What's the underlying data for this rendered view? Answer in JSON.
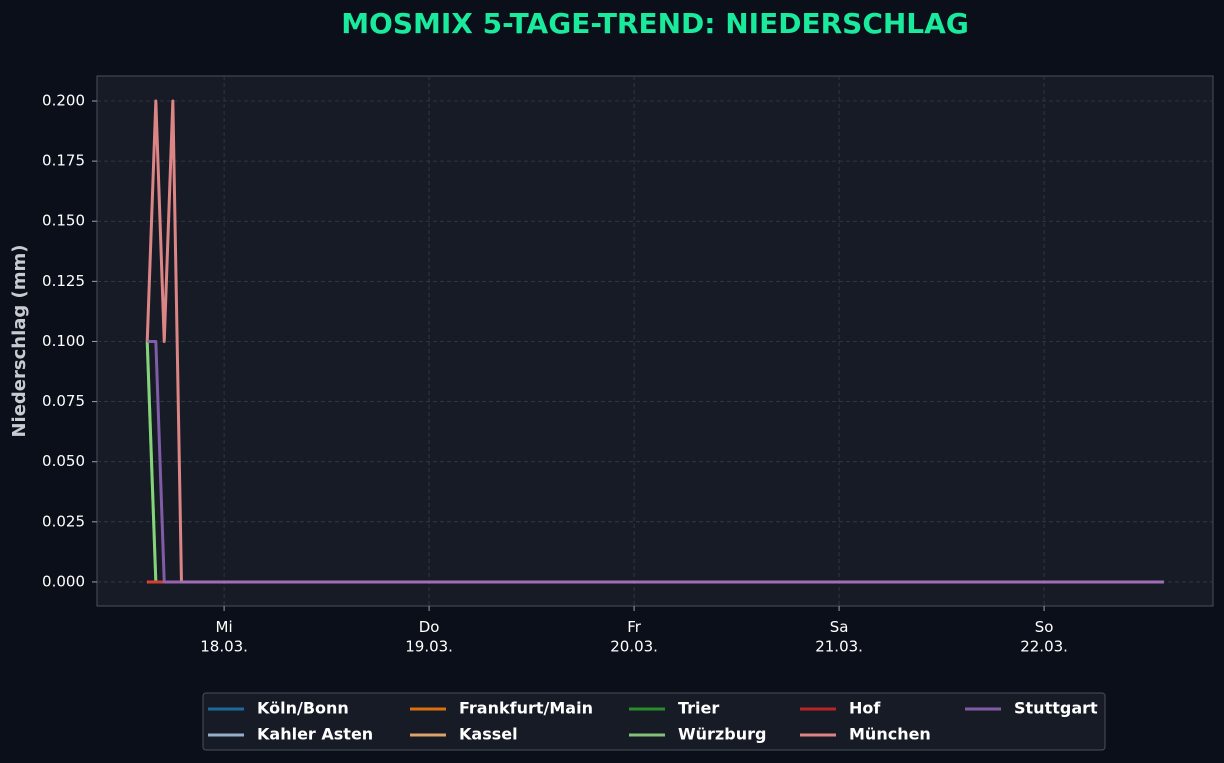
{
  "chart_data": {
    "type": "line",
    "title": "MOSMIX 5-TAGE-TREND: NIEDERSCHLAG",
    "y_label": "Niederschlag (mm)",
    "x": [
      17.625,
      17.667,
      17.708,
      17.75,
      17.792,
      22.583
    ],
    "xlim": [
      17.38,
      22.824
    ],
    "xticks": [
      {
        "value": 18,
        "label": "Mi\n18.03."
      },
      {
        "value": 19,
        "label": "Do\n19.03."
      },
      {
        "value": 20,
        "label": "Fr\n20.03."
      },
      {
        "value": 21,
        "label": "Sa\n21.03."
      },
      {
        "value": 22,
        "label": "So\n22.03."
      }
    ],
    "ylim": [
      -0.01,
      0.2104
    ],
    "yticks": [
      {
        "value": 0,
        "label": "0.000"
      },
      {
        "value": 0.025,
        "label": "0.025"
      },
      {
        "value": 0.05,
        "label": "0.050"
      },
      {
        "value": 0.075,
        "label": "0.075"
      },
      {
        "value": 0.1,
        "label": "0.100"
      },
      {
        "value": 0.125,
        "label": "0.125"
      },
      {
        "value": 0.15,
        "label": "0.150"
      },
      {
        "value": 0.175,
        "label": "0.175"
      },
      {
        "value": 0.2,
        "label": "0.200"
      }
    ],
    "grid": true,
    "legend": "bottom",
    "series": [
      {
        "name": "Köln/Bonn",
        "color": "#1f77b4",
        "values": [
          0,
          0,
          0,
          0,
          0,
          0
        ]
      },
      {
        "name": "Kahler Asten",
        "color": "#aec7e8",
        "values": [
          0,
          0,
          0,
          0,
          0,
          0
        ]
      },
      {
        "name": "Frankfurt/Main",
        "color": "#ff7f0e",
        "values": [
          0,
          0,
          0,
          0,
          0,
          0
        ]
      },
      {
        "name": "Kassel",
        "color": "#ffbb78",
        "values": [
          0,
          0,
          0,
          0,
          0,
          0
        ]
      },
      {
        "name": "Trier",
        "color": "#2ca02c",
        "values": [
          0.1,
          0,
          0,
          0,
          0,
          0
        ]
      },
      {
        "name": "Würzburg",
        "color": "#98df8a",
        "values": [
          0.1,
          0,
          0,
          0,
          0,
          0
        ]
      },
      {
        "name": "Hof",
        "color": "#d62728",
        "values": [
          0,
          0,
          0,
          0,
          0,
          0
        ]
      },
      {
        "name": "München",
        "color": "#ff9896",
        "values": [
          0.1,
          0.2,
          0.1,
          0.2,
          0,
          0
        ]
      },
      {
        "name": "Stuttgart",
        "color": "#9467bd",
        "values": [
          0.1,
          0.1,
          0,
          0,
          0,
          0
        ]
      }
    ]
  }
}
